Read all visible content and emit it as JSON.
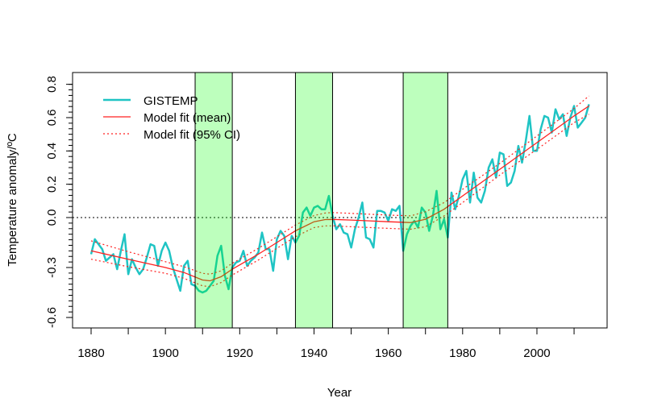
{
  "chart_data": {
    "type": "line",
    "title": "",
    "xlabel": "Year",
    "ylabel": "Temperature anomaly/ºC",
    "xlim": [
      1875,
      2019
    ],
    "ylim": [
      -0.66,
      0.87
    ],
    "xticks": [
      1880,
      1900,
      1920,
      1940,
      1960,
      1980,
      2000
    ],
    "xticks_minor": [
      1890,
      1910,
      1930,
      1950,
      1970,
      1990,
      2010
    ],
    "yticks": [
      0.8,
      0.6,
      0.4,
      0.2,
      0.0,
      -0.3,
      -0.6
    ],
    "ytick_labels": [
      "0.8",
      "0.6",
      "0.4",
      "0.2",
      "0.0",
      "-0.3",
      "-0.6"
    ],
    "reference_line": 0.0,
    "grid": false,
    "legend_position": "top-left",
    "shaded_periods": [
      [
        1908,
        1918
      ],
      [
        1935,
        1945
      ],
      [
        1964,
        1976
      ]
    ],
    "colors": {
      "gistemp": "#1fc4c4",
      "model": "#ff2020",
      "band": "#00ff00"
    },
    "series": [
      {
        "name": "GISTEMP",
        "style": "solid",
        "x_start": 1880,
        "values": [
          -0.22,
          -0.13,
          -0.16,
          -0.19,
          -0.26,
          -0.24,
          -0.22,
          -0.31,
          -0.2,
          -0.1,
          -0.34,
          -0.25,
          -0.3,
          -0.34,
          -0.31,
          -0.24,
          -0.16,
          -0.17,
          -0.29,
          -0.2,
          -0.15,
          -0.2,
          -0.3,
          -0.37,
          -0.44,
          -0.29,
          -0.26,
          -0.4,
          -0.41,
          -0.44,
          -0.45,
          -0.44,
          -0.41,
          -0.38,
          -0.23,
          -0.17,
          -0.35,
          -0.43,
          -0.3,
          -0.27,
          -0.26,
          -0.2,
          -0.29,
          -0.26,
          -0.24,
          -0.21,
          -0.09,
          -0.19,
          -0.19,
          -0.32,
          -0.13,
          -0.08,
          -0.11,
          -0.25,
          -0.11,
          -0.15,
          -0.11,
          0.03,
          0.06,
          0.01,
          0.06,
          0.07,
          0.05,
          0.05,
          0.13,
          0.01,
          -0.07,
          -0.04,
          -0.09,
          -0.1,
          -0.18,
          -0.07,
          0.0,
          0.09,
          -0.12,
          -0.13,
          -0.18,
          0.04,
          0.04,
          0.03,
          -0.02,
          0.05,
          0.04,
          0.07,
          -0.2,
          -0.1,
          -0.05,
          -0.02,
          -0.06,
          0.06,
          0.03,
          -0.08,
          0.01,
          0.16,
          -0.07,
          -0.01,
          -0.12,
          0.15,
          0.05,
          0.13,
          0.23,
          0.28,
          0.09,
          0.27,
          0.12,
          0.09,
          0.16,
          0.3,
          0.35,
          0.24,
          0.39,
          0.38,
          0.19,
          0.21,
          0.28,
          0.43,
          0.33,
          0.46,
          0.61,
          0.4,
          0.4,
          0.53,
          0.61,
          0.6,
          0.51,
          0.65,
          0.59,
          0.62,
          0.49,
          0.6,
          0.67,
          0.54,
          0.57,
          0.6,
          0.68
        ]
      },
      {
        "name": "Model fit (mean)",
        "style": "solid",
        "x": [
          1880,
          1890,
          1900,
          1905,
          1910,
          1912,
          1915,
          1918,
          1925,
          1930,
          1935,
          1940,
          1943,
          1945,
          1950,
          1955,
          1960,
          1966,
          1970,
          1975,
          1980,
          1990,
          2000,
          2010,
          2014
        ],
        "values": [
          -0.2,
          -0.25,
          -0.3,
          -0.33,
          -0.375,
          -0.38,
          -0.355,
          -0.31,
          -0.22,
          -0.15,
          -0.08,
          -0.025,
          -0.012,
          -0.011,
          -0.015,
          -0.02,
          -0.025,
          -0.03,
          -0.01,
          0.05,
          0.13,
          0.29,
          0.45,
          0.61,
          0.67
        ]
      },
      {
        "name": "Model fit (95% CI)",
        "style": "dotted",
        "x": [
          1880,
          1890,
          1900,
          1905,
          1910,
          1912,
          1915,
          1918,
          1925,
          1930,
          1935,
          1940,
          1943,
          1945,
          1950,
          1955,
          1960,
          1966,
          1970,
          1975,
          1980,
          1990,
          2000,
          2010,
          2014
        ],
        "upper": [
          -0.14,
          -0.205,
          -0.265,
          -0.295,
          -0.335,
          -0.34,
          -0.32,
          -0.275,
          -0.185,
          -0.115,
          -0.045,
          0.012,
          0.027,
          0.03,
          0.025,
          0.02,
          0.015,
          0.01,
          0.035,
          0.09,
          0.17,
          0.325,
          0.49,
          0.655,
          0.73
        ],
        "lower": [
          -0.25,
          -0.295,
          -0.335,
          -0.365,
          -0.41,
          -0.415,
          -0.39,
          -0.345,
          -0.255,
          -0.185,
          -0.115,
          -0.06,
          -0.05,
          -0.05,
          -0.055,
          -0.06,
          -0.065,
          -0.07,
          -0.055,
          0.01,
          0.09,
          0.255,
          0.41,
          0.57,
          0.62
        ]
      }
    ]
  },
  "legend": {
    "items": [
      "GISTEMP",
      "Model fit (mean)",
      "Model fit (95% CI)"
    ]
  }
}
